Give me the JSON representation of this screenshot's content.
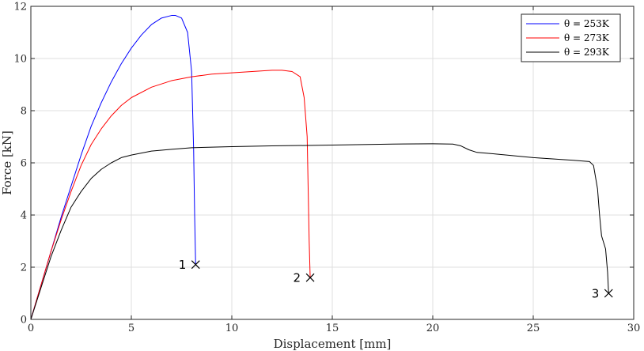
{
  "chart_data": {
    "type": "line",
    "xlabel": "Displacement [mm]",
    "ylabel": "Force [kN]",
    "xlim": [
      0,
      30
    ],
    "ylim": [
      0,
      12
    ],
    "xticks": [
      0,
      5,
      10,
      15,
      20,
      25,
      30
    ],
    "yticks": [
      0,
      2,
      4,
      6,
      8,
      10,
      12
    ],
    "grid": true,
    "legend_position": "top-right",
    "series": [
      {
        "name": "θ = 253K",
        "color": "#0000ff",
        "x": [
          0,
          0.5,
          1,
          1.5,
          2,
          2.5,
          3,
          3.5,
          4,
          4.5,
          5,
          5.5,
          6,
          6.5,
          7,
          7.2,
          7.5,
          7.8,
          8.0,
          8.1,
          8.15,
          8.2
        ],
        "y": [
          0,
          1.3,
          2.6,
          3.9,
          5.1,
          6.3,
          7.4,
          8.3,
          9.1,
          9.8,
          10.4,
          10.9,
          11.3,
          11.55,
          11.65,
          11.65,
          11.55,
          11.0,
          9.5,
          6.5,
          4.0,
          2.1
        ]
      },
      {
        "name": "θ = 273K",
        "color": "#ff0000",
        "x": [
          0,
          0.5,
          1,
          1.5,
          2,
          2.5,
          3,
          3.5,
          4,
          4.5,
          5,
          6,
          7,
          8,
          9,
          10,
          11,
          12,
          12.5,
          13,
          13.4,
          13.6,
          13.75,
          13.8,
          13.85,
          13.9
        ],
        "y": [
          0,
          1.3,
          2.6,
          3.8,
          4.9,
          5.9,
          6.7,
          7.3,
          7.8,
          8.2,
          8.5,
          8.9,
          9.15,
          9.3,
          9.4,
          9.45,
          9.5,
          9.55,
          9.55,
          9.5,
          9.3,
          8.5,
          7.0,
          5.0,
          3.0,
          1.6
        ]
      },
      {
        "name": "θ = 293K",
        "color": "#000000",
        "x": [
          0,
          0.5,
          1,
          1.5,
          2,
          2.5,
          3,
          3.5,
          4,
          4.5,
          5,
          6,
          7,
          8,
          10,
          12,
          15,
          18,
          20,
          21,
          21.4,
          21.8,
          22.2,
          23,
          25,
          27,
          27.8,
          28.0,
          28.2,
          28.3,
          28.4,
          28.6,
          28.7,
          28.75
        ],
        "y": [
          0,
          1.2,
          2.4,
          3.4,
          4.3,
          4.9,
          5.4,
          5.75,
          6.0,
          6.2,
          6.3,
          6.45,
          6.52,
          6.58,
          6.62,
          6.65,
          6.68,
          6.72,
          6.73,
          6.72,
          6.65,
          6.5,
          6.4,
          6.35,
          6.2,
          6.1,
          6.05,
          5.9,
          5.0,
          4.0,
          3.2,
          2.7,
          1.8,
          1.0
        ]
      }
    ],
    "annotations": [
      {
        "label": "1",
        "x": 8.2,
        "y": 2.1
      },
      {
        "label": "2",
        "x": 13.9,
        "y": 1.6
      },
      {
        "label": "3",
        "x": 28.75,
        "y": 1.0
      }
    ]
  }
}
